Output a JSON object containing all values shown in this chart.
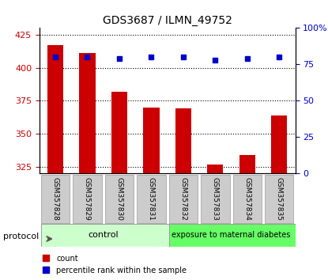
{
  "title": "GDS3687 / ILMN_49752",
  "samples": [
    "GSM357828",
    "GSM357829",
    "GSM357830",
    "GSM357831",
    "GSM357832",
    "GSM357833",
    "GSM357834",
    "GSM357835"
  ],
  "count_values": [
    417,
    411,
    382,
    370,
    369,
    327,
    334,
    364
  ],
  "percentile_values": [
    80,
    80,
    79,
    80,
    80,
    78,
    79,
    80
  ],
  "ylim_left": [
    320,
    430
  ],
  "ylim_right": [
    0,
    100
  ],
  "yticks_left": [
    325,
    350,
    375,
    400,
    425
  ],
  "yticks_right": [
    0,
    25,
    50,
    75,
    100
  ],
  "bar_color": "#cc0000",
  "dot_color": "#0000cc",
  "grid_color": "#000000",
  "background_color": "#ffffff",
  "plot_bg_color": "#ffffff",
  "left_label_color": "#cc0000",
  "right_label_color": "#0000cc",
  "control_label": "control",
  "diabetes_label": "exposure to maternal diabetes",
  "control_color": "#ccffcc",
  "diabetes_color": "#66ff66",
  "tick_label_bg": "#cccccc",
  "legend_count_label": "count",
  "legend_pct_label": "percentile rank within the sample",
  "protocol_label": "protocol"
}
